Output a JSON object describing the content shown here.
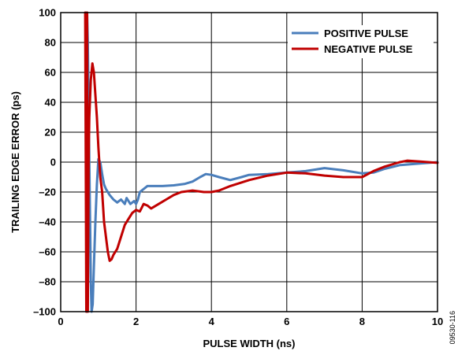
{
  "chart_data": {
    "type": "line",
    "xlabel": "PULSE WIDTH (ns)",
    "ylabel": "TRAILING EDGE ERROR (ps)",
    "xlim": [
      0,
      10
    ],
    "ylim": [
      -100,
      100
    ],
    "x_ticks": [
      0,
      2,
      4,
      6,
      8,
      10
    ],
    "x_tick_labels": [
      "0",
      "2",
      "4",
      "6",
      "8",
      "10"
    ],
    "y_ticks": [
      100,
      80,
      60,
      40,
      20,
      0,
      -20,
      -40,
      -60,
      -80,
      -100
    ],
    "y_tick_labels": [
      "100",
      "80",
      "60",
      "40",
      "20",
      "0",
      "–20",
      "–40",
      "–60",
      "–80",
      "–100"
    ],
    "grid": true,
    "legend_position": "top-right",
    "figure_id": "09530-116",
    "series": [
      {
        "name": "POSITIVE PULSE",
        "color": "#4a7ebb",
        "x": [
          0.65,
          0.7,
          0.72,
          0.74,
          0.76,
          0.78,
          0.8,
          0.82,
          0.85,
          0.88,
          0.92,
          0.96,
          1.0,
          1.05,
          1.1,
          1.15,
          1.2,
          1.3,
          1.4,
          1.5,
          1.6,
          1.7,
          1.75,
          1.8,
          1.85,
          1.9,
          1.95,
          2.0,
          2.05,
          2.1,
          2.2,
          2.3,
          2.5,
          2.7,
          3.0,
          3.3,
          3.5,
          3.7,
          3.85,
          4.0,
          4.2,
          4.5,
          4.8,
          5.0,
          5.5,
          6.0,
          6.5,
          7.0,
          7.5,
          8.0,
          8.3,
          8.6,
          9.0,
          9.5,
          10.0
        ],
        "y": [
          100,
          100,
          80,
          40,
          0,
          -40,
          -80,
          -100,
          -95,
          -70,
          -40,
          -15,
          2,
          0,
          -8,
          -15,
          -18,
          -22,
          -25,
          -27,
          -25,
          -28,
          -24,
          -26,
          -28,
          -27,
          -26,
          -28,
          -25,
          -20,
          -18,
          -16,
          -16,
          -16,
          -15.5,
          -14.5,
          -13,
          -10,
          -8,
          -8.5,
          -10,
          -12,
          -10,
          -8.5,
          -8,
          -7,
          -6,
          -4,
          -5.5,
          -7.5,
          -7,
          -4.5,
          -2,
          -1,
          0
        ]
      },
      {
        "name": "NEGATIVE PULSE",
        "color": "#c00000",
        "x": [
          0.65,
          0.68,
          0.7,
          0.72,
          0.74,
          0.76,
          0.8,
          0.84,
          0.88,
          0.92,
          0.96,
          1.0,
          1.05,
          1.1,
          1.15,
          1.2,
          1.25,
          1.3,
          1.35,
          1.4,
          1.5,
          1.6,
          1.7,
          1.8,
          1.9,
          2.0,
          2.1,
          2.2,
          2.3,
          2.4,
          2.6,
          2.8,
          3.0,
          3.2,
          3.5,
          3.8,
          4.0,
          4.2,
          4.5,
          5.0,
          5.5,
          6.0,
          6.5,
          7.0,
          7.5,
          8.0,
          8.3,
          8.6,
          9.0,
          9.2,
          9.5,
          10.0
        ],
        "y": [
          100,
          -100,
          100,
          -100,
          0,
          30,
          55,
          66,
          60,
          45,
          30,
          10,
          -10,
          -20,
          -40,
          -50,
          -60,
          -66,
          -65,
          -62,
          -58,
          -50,
          -42,
          -38,
          -34,
          -32,
          -33,
          -28,
          -29,
          -31,
          -28,
          -25,
          -22,
          -20,
          -19,
          -20,
          -20,
          -19,
          -16,
          -12,
          -9,
          -7,
          -7.5,
          -9,
          -10,
          -10,
          -6,
          -3,
          0,
          1,
          0.5,
          -0.5
        ]
      }
    ]
  }
}
